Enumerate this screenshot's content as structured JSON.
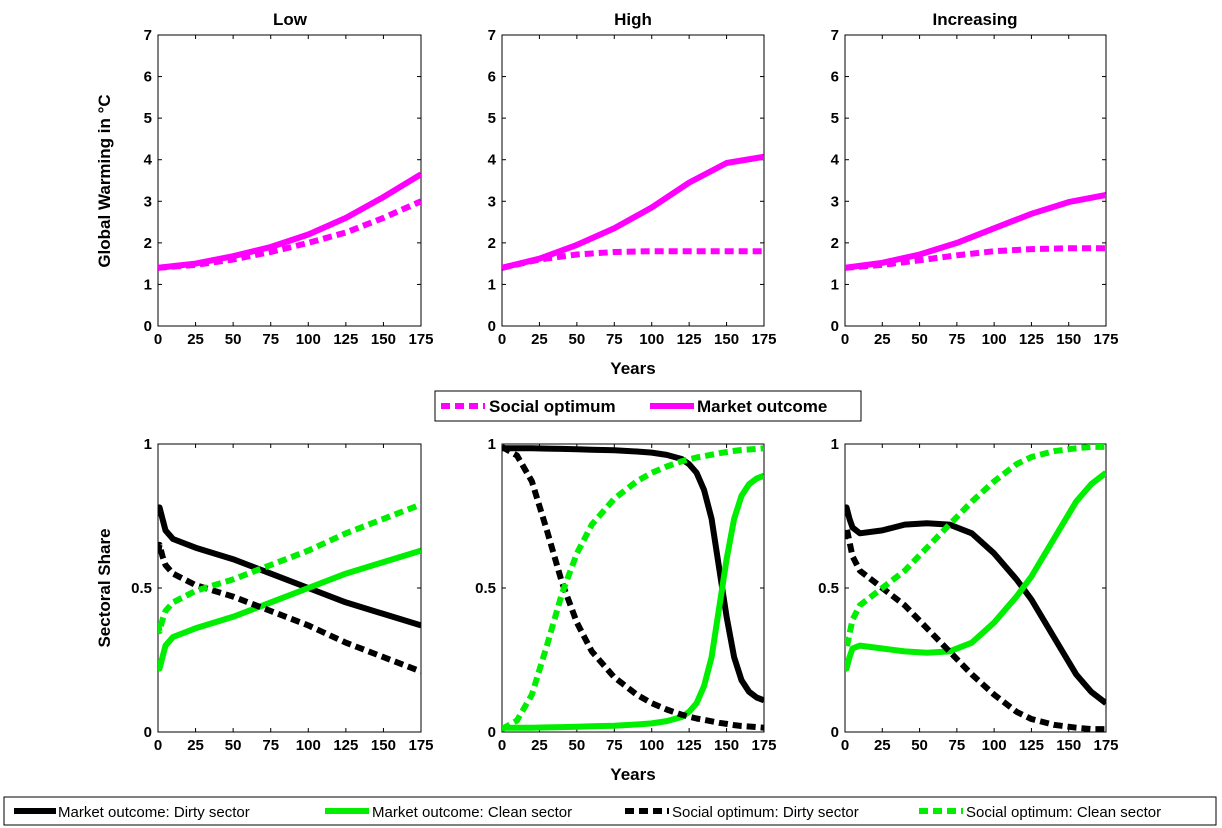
{
  "figure": {
    "top_ylabel": "Global Warming in °C",
    "bottom_ylabel": "Sectoral Share",
    "top_xlabel": "Years",
    "bottom_xlabel": "Years",
    "colors": {
      "magenta": "#ff00ff",
      "green": "#00ee00",
      "black": "#000000"
    }
  },
  "legend_top": [
    {
      "label": "Social optimum",
      "color": "#ff00ff",
      "style": "dashed"
    },
    {
      "label": "Market outcome",
      "color": "#ff00ff",
      "style": "solid"
    }
  ],
  "legend_bottom": [
    {
      "label": "Market outcome: Dirty sector",
      "color": "#000000",
      "style": "solid"
    },
    {
      "label": "Market outcome: Clean sector",
      "color": "#00ee00",
      "style": "solid"
    },
    {
      "label": "Social optimum: Dirty sector",
      "color": "#000000",
      "style": "dashed"
    },
    {
      "label": "Social optimum: Clean sector",
      "color": "#00ee00",
      "style": "dashed"
    }
  ],
  "chart_data": [
    {
      "type": "line",
      "title": "Low",
      "ylabel": "Global Warming in °C",
      "xlabel": "",
      "xlim": [
        0,
        175
      ],
      "ylim": [
        0,
        7
      ],
      "xticks": [
        0,
        25,
        50,
        75,
        100,
        125,
        150,
        175
      ],
      "yticks": [
        0,
        1,
        2,
        3,
        4,
        5,
        6,
        7
      ],
      "grid": false,
      "x": [
        0,
        25,
        50,
        75,
        100,
        125,
        150,
        175
      ],
      "series": [
        {
          "name": "Social optimum",
          "color": "#ff00ff",
          "style": "dashed",
          "values": [
            1.4,
            1.47,
            1.6,
            1.78,
            2.0,
            2.25,
            2.6,
            3.0
          ]
        },
        {
          "name": "Market outcome",
          "color": "#ff00ff",
          "style": "solid",
          "values": [
            1.4,
            1.5,
            1.68,
            1.9,
            2.2,
            2.6,
            3.1,
            3.65
          ]
        }
      ]
    },
    {
      "type": "line",
      "title": "High",
      "ylabel": "",
      "xlabel": "Years",
      "xlim": [
        0,
        175
      ],
      "ylim": [
        0,
        7
      ],
      "xticks": [
        0,
        25,
        50,
        75,
        100,
        125,
        150,
        175
      ],
      "yticks": [
        0,
        1,
        2,
        3,
        4,
        5,
        6,
        7
      ],
      "grid": false,
      "x": [
        0,
        25,
        50,
        75,
        100,
        125,
        150,
        175
      ],
      "series": [
        {
          "name": "Social optimum",
          "color": "#ff00ff",
          "style": "dashed",
          "values": [
            1.4,
            1.6,
            1.72,
            1.78,
            1.8,
            1.8,
            1.8,
            1.8
          ]
        },
        {
          "name": "Market outcome",
          "color": "#ff00ff",
          "style": "solid",
          "values": [
            1.4,
            1.62,
            1.95,
            2.35,
            2.85,
            3.45,
            3.92,
            4.07
          ]
        }
      ]
    },
    {
      "type": "line",
      "title": "Increasing",
      "ylabel": "",
      "xlabel": "",
      "xlim": [
        0,
        175
      ],
      "ylim": [
        0,
        7
      ],
      "xticks": [
        0,
        25,
        50,
        75,
        100,
        125,
        150,
        175
      ],
      "yticks": [
        0,
        1,
        2,
        3,
        4,
        5,
        6,
        7
      ],
      "grid": false,
      "x": [
        0,
        25,
        50,
        75,
        100,
        125,
        150,
        175
      ],
      "series": [
        {
          "name": "Social optimum",
          "color": "#ff00ff",
          "style": "dashed",
          "values": [
            1.4,
            1.47,
            1.58,
            1.7,
            1.8,
            1.85,
            1.87,
            1.87
          ]
        },
        {
          "name": "Market outcome",
          "color": "#ff00ff",
          "style": "solid",
          "values": [
            1.4,
            1.52,
            1.72,
            2.0,
            2.35,
            2.7,
            2.98,
            3.15
          ]
        }
      ]
    },
    {
      "type": "line",
      "title": "",
      "ylabel": "Sectoral Share",
      "xlabel": "",
      "xlim": [
        0,
        175
      ],
      "ylim": [
        0,
        1
      ],
      "xticks": [
        0,
        25,
        50,
        75,
        100,
        125,
        150,
        175
      ],
      "yticks": [
        0,
        0.5,
        1
      ],
      "grid": false,
      "x": [
        0,
        1,
        3,
        5,
        10,
        25,
        50,
        75,
        100,
        125,
        150,
        175
      ],
      "series": [
        {
          "name": "Market outcome: Dirty sector",
          "color": "#000000",
          "style": "solid",
          "values": [
            0.75,
            0.78,
            0.74,
            0.7,
            0.67,
            0.64,
            0.6,
            0.55,
            0.5,
            0.45,
            0.41,
            0.37
          ]
        },
        {
          "name": "Market outcome: Clean sector",
          "color": "#00ee00",
          "style": "solid",
          "values": [
            0.25,
            0.22,
            0.26,
            0.3,
            0.33,
            0.36,
            0.4,
            0.45,
            0.5,
            0.55,
            0.59,
            0.63
          ]
        },
        {
          "name": "Social optimum: Dirty sector",
          "color": "#000000",
          "style": "dashed",
          "values": [
            0.62,
            0.65,
            0.61,
            0.58,
            0.55,
            0.51,
            0.47,
            0.42,
            0.37,
            0.31,
            0.26,
            0.21
          ]
        },
        {
          "name": "Social optimum: Clean sector",
          "color": "#00ee00",
          "style": "dashed",
          "values": [
            0.38,
            0.35,
            0.39,
            0.42,
            0.45,
            0.49,
            0.53,
            0.58,
            0.63,
            0.69,
            0.74,
            0.79
          ]
        }
      ]
    },
    {
      "type": "line",
      "title": "",
      "ylabel": "",
      "xlabel": "Years",
      "xlim": [
        0,
        175
      ],
      "ylim": [
        0,
        1
      ],
      "xticks": [
        0,
        25,
        50,
        75,
        100,
        125,
        150,
        175
      ],
      "yticks": [
        0,
        0.5,
        1
      ],
      "grid": false,
      "x": [
        0,
        10,
        20,
        30,
        40,
        50,
        60,
        75,
        90,
        100,
        110,
        120,
        125,
        130,
        135,
        140,
        145,
        150,
        155,
        160,
        165,
        170,
        175
      ],
      "series": [
        {
          "name": "Market outcome: Dirty sector",
          "color": "#000000",
          "style": "solid",
          "values": [
            0.985,
            0.985,
            0.985,
            0.984,
            0.983,
            0.982,
            0.98,
            0.978,
            0.974,
            0.97,
            0.962,
            0.948,
            0.93,
            0.9,
            0.84,
            0.74,
            0.57,
            0.4,
            0.26,
            0.18,
            0.14,
            0.12,
            0.11
          ]
        },
        {
          "name": "Market outcome: Clean sector",
          "color": "#00ee00",
          "style": "solid",
          "values": [
            0.015,
            0.015,
            0.015,
            0.016,
            0.017,
            0.018,
            0.02,
            0.022,
            0.026,
            0.03,
            0.038,
            0.052,
            0.07,
            0.1,
            0.16,
            0.26,
            0.43,
            0.6,
            0.74,
            0.82,
            0.86,
            0.88,
            0.89
          ]
        },
        {
          "name": "Social optimum: Dirty sector",
          "color": "#000000",
          "style": "dashed",
          "values": [
            0.99,
            0.96,
            0.87,
            0.7,
            0.52,
            0.38,
            0.28,
            0.19,
            0.13,
            0.1,
            0.078,
            0.06,
            0.053,
            0.047,
            0.042,
            0.037,
            0.032,
            0.028,
            0.024,
            0.021,
            0.019,
            0.017,
            0.015
          ]
        },
        {
          "name": "Social optimum: Clean sector",
          "color": "#00ee00",
          "style": "dashed",
          "values": [
            0.01,
            0.04,
            0.13,
            0.3,
            0.48,
            0.62,
            0.72,
            0.81,
            0.87,
            0.9,
            0.922,
            0.94,
            0.947,
            0.953,
            0.958,
            0.963,
            0.968,
            0.972,
            0.976,
            0.979,
            0.981,
            0.983,
            0.985
          ]
        }
      ]
    },
    {
      "type": "line",
      "title": "",
      "ylabel": "",
      "xlabel": "",
      "xlim": [
        0,
        175
      ],
      "ylim": [
        0,
        1
      ],
      "xticks": [
        0,
        25,
        50,
        75,
        100,
        125,
        150,
        175
      ],
      "yticks": [
        0,
        0.5,
        1
      ],
      "grid": false,
      "x": [
        0,
        1,
        3,
        5,
        10,
        25,
        40,
        55,
        70,
        85,
        100,
        115,
        125,
        140,
        155,
        165,
        175
      ],
      "series": [
        {
          "name": "Market outcome: Dirty sector",
          "color": "#000000",
          "style": "solid",
          "values": [
            0.75,
            0.78,
            0.74,
            0.71,
            0.69,
            0.7,
            0.72,
            0.725,
            0.72,
            0.69,
            0.62,
            0.53,
            0.46,
            0.33,
            0.2,
            0.14,
            0.1
          ]
        },
        {
          "name": "Market outcome: Clean sector",
          "color": "#00ee00",
          "style": "solid",
          "values": [
            0.25,
            0.22,
            0.26,
            0.29,
            0.3,
            0.29,
            0.28,
            0.275,
            0.28,
            0.31,
            0.38,
            0.47,
            0.54,
            0.67,
            0.8,
            0.86,
            0.9
          ]
        },
        {
          "name": "Social optimum: Dirty sector",
          "color": "#000000",
          "style": "dashed",
          "values": [
            0.67,
            0.71,
            0.66,
            0.61,
            0.56,
            0.5,
            0.44,
            0.36,
            0.28,
            0.2,
            0.13,
            0.07,
            0.045,
            0.025,
            0.015,
            0.01,
            0.01
          ]
        },
        {
          "name": "Social optimum: Clean sector",
          "color": "#00ee00",
          "style": "dashed",
          "values": [
            0.33,
            0.29,
            0.34,
            0.39,
            0.44,
            0.5,
            0.56,
            0.64,
            0.72,
            0.8,
            0.87,
            0.93,
            0.955,
            0.975,
            0.985,
            0.99,
            0.99
          ]
        }
      ]
    }
  ]
}
